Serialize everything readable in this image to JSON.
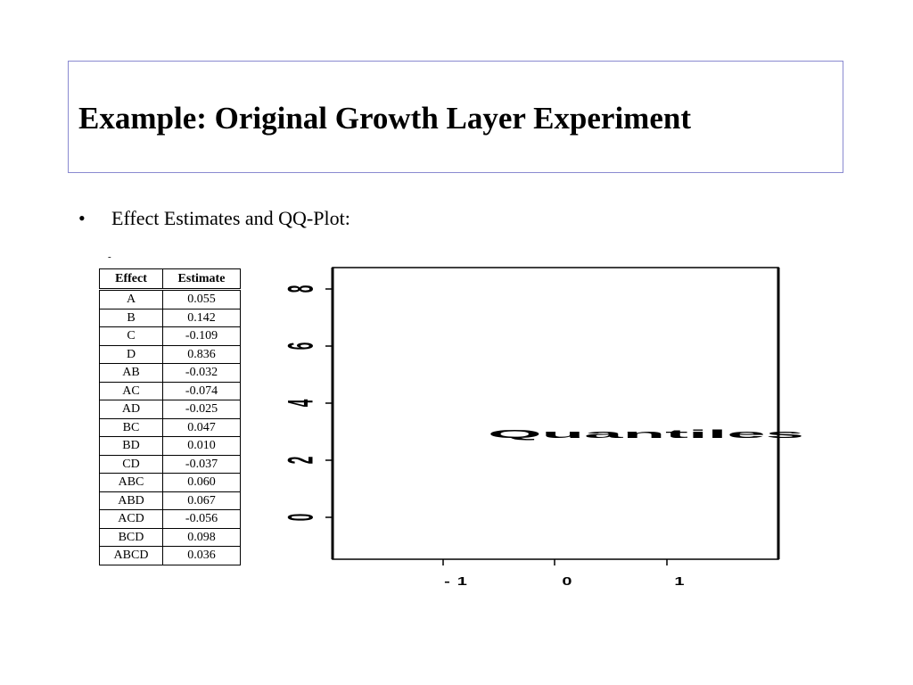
{
  "slide": {
    "title": "Example: Original Growth Layer Experiment",
    "bullet_symbol": "•",
    "bullet_text": "Effect Estimates and QQ-Plot:",
    "stray_mark": "-"
  },
  "table": {
    "headers": [
      "Effect",
      "Estimate"
    ],
    "rows": [
      [
        "A",
        "0.055"
      ],
      [
        "B",
        "0.142"
      ],
      [
        "C",
        "-0.109"
      ],
      [
        "D",
        "0.836"
      ],
      [
        "AB",
        "-0.032"
      ],
      [
        "AC",
        "-0.074"
      ],
      [
        "AD",
        "-0.025"
      ],
      [
        "BC",
        "0.047"
      ],
      [
        "BD",
        "0.010"
      ],
      [
        "CD",
        "-0.037"
      ],
      [
        "ABC",
        "0.060"
      ],
      [
        "ABD",
        "0.067"
      ],
      [
        "ACD",
        "-0.056"
      ],
      [
        "BCD",
        "0.098"
      ],
      [
        "ABCD",
        "0.036"
      ]
    ]
  },
  "chart_data": {
    "type": "scatter",
    "title": "",
    "xlabel": "Quantiles",
    "ylabel": "",
    "x_ticks": [
      "-1",
      "0",
      "1"
    ],
    "y_ticks": [
      "0",
      "2",
      "4",
      "6",
      "8"
    ],
    "series": [],
    "grid": false
  }
}
